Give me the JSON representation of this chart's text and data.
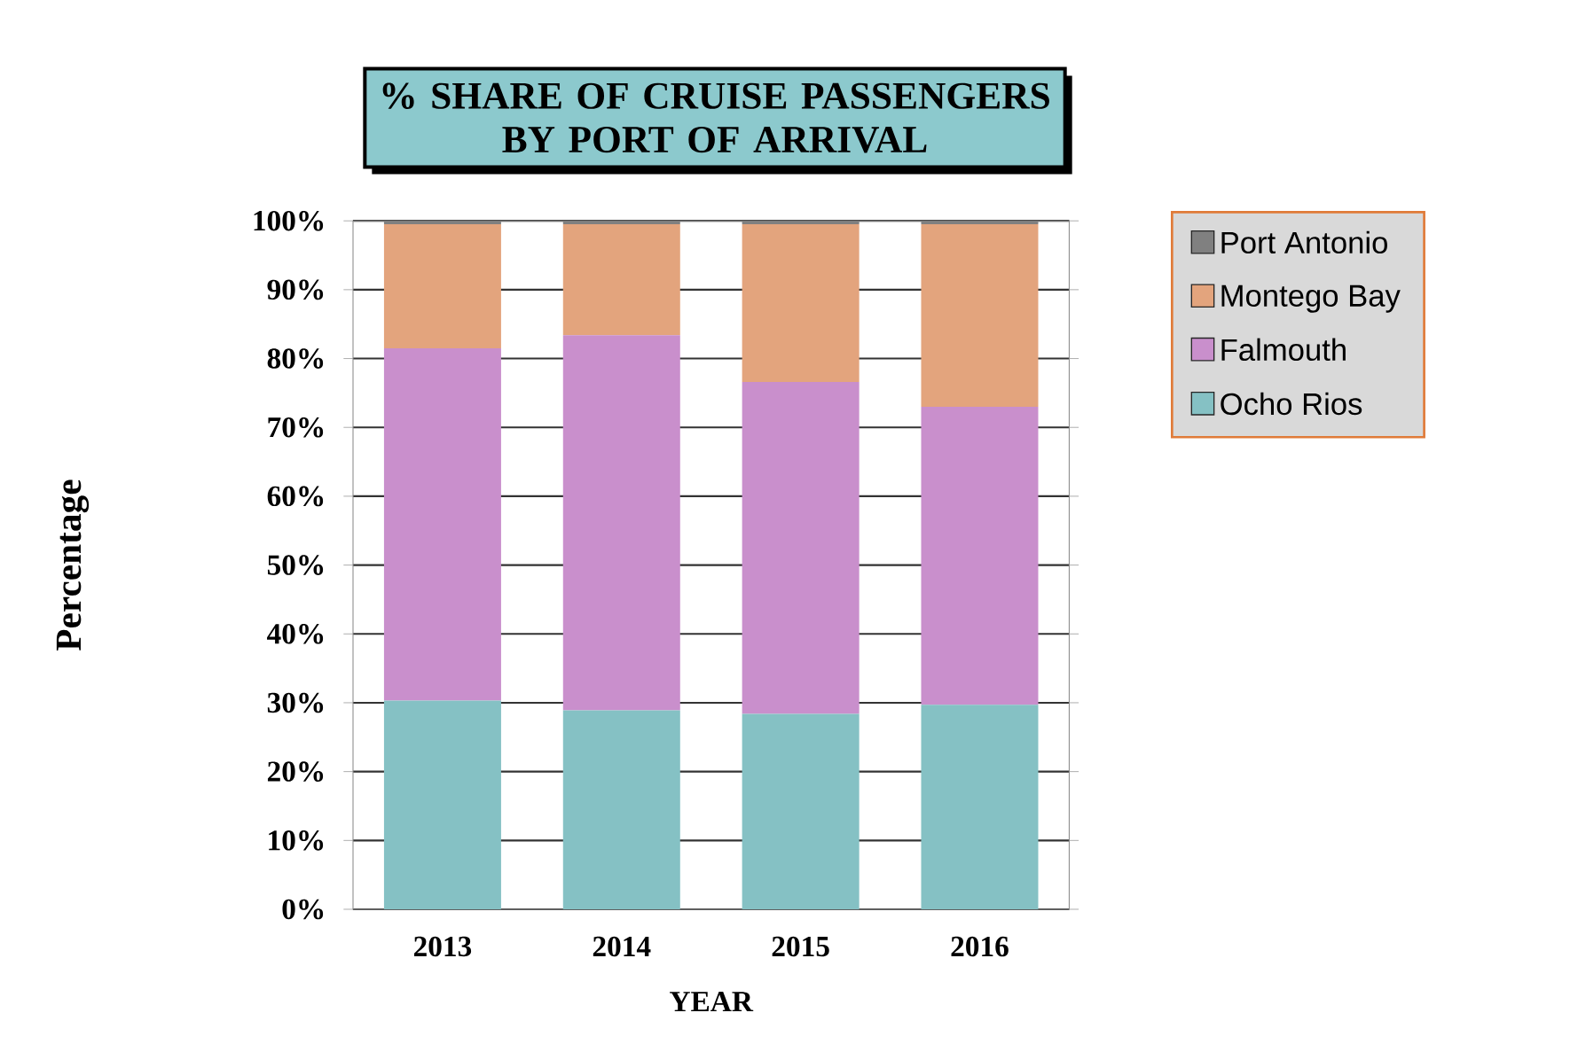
{
  "chart_data": {
    "type": "bar",
    "title": "% SHARE OF CRUISE PASSENGERS BY PORT OF ARRIVAL",
    "xlabel": "YEAR",
    "ylabel": "Percentage",
    "categories": [
      "2013",
      "2014",
      "2015",
      "2016"
    ],
    "stacked": true,
    "series": [
      {
        "name": "Ocho Rios",
        "color": "#85c1c4",
        "values": [
          30.3,
          28.9,
          28.4,
          29.7
        ]
      },
      {
        "name": "Falmouth",
        "color": "#c98fcc",
        "values": [
          51.2,
          54.5,
          48.2,
          43.3
        ]
      },
      {
        "name": "Montego Bay",
        "color": "#e3a47d",
        "values": [
          18.0,
          16.1,
          22.9,
          26.5
        ]
      },
      {
        "name": "Port Antonio",
        "color": "#808080",
        "values": [
          0.5,
          0.5,
          0.5,
          0.5
        ]
      }
    ],
    "ylim": [
      0,
      100
    ],
    "yticks": [
      {
        "value": 0,
        "label": "0%"
      },
      {
        "value": 10,
        "label": "10%"
      },
      {
        "value": 20,
        "label": "20%"
      },
      {
        "value": 30,
        "label": "30%"
      },
      {
        "value": 40,
        "label": "40%"
      },
      {
        "value": 50,
        "label": "50%"
      },
      {
        "value": 60,
        "label": "60%"
      },
      {
        "value": 70,
        "label": "70%"
      },
      {
        "value": 80,
        "label": "80%"
      },
      {
        "value": 90,
        "label": "90%"
      },
      {
        "value": 100,
        "label": "100%"
      }
    ],
    "grid": "y",
    "legend": "top right"
  }
}
